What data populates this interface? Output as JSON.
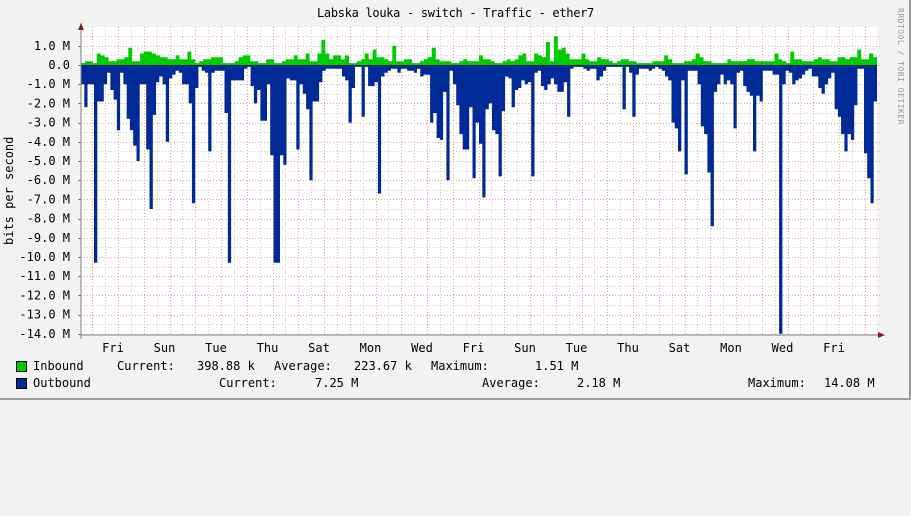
{
  "title": "Labska louka - switch - Traffic - ether7",
  "watermark": "RRDTOOL / TOBI OETIKER",
  "chart_data": {
    "type": "area",
    "title": "Labska louka - switch - Traffic - ether7",
    "xlabel": "",
    "ylabel": "bits per second",
    "ylim": [
      -14000000,
      1500000
    ],
    "grid": true,
    "legend_position": "bottom",
    "y_ticks": [
      "1.0 M",
      "0.0",
      "-1.0 M",
      "-2.0 M",
      "-3.0 M",
      "-4.0 M",
      "-5.0 M",
      "-6.0 M",
      "-7.0 M",
      "-8.0 M",
      "-9.0 M",
      "-10.0 M",
      "-11.0 M",
      "-12.0 M",
      "-13.0 M",
      "-14.0 M"
    ],
    "x_ticks": [
      "Fri",
      "Sun",
      "Tue",
      "Thu",
      "Sat",
      "Mon",
      "Wed",
      "Fri",
      "Sun",
      "Tue",
      "Thu",
      "Sat",
      "Mon",
      "Wed",
      "Fri"
    ],
    "series": [
      {
        "name": "Inbound",
        "color": "#00cc00",
        "current": "398.88 k",
        "average": "223.67 k",
        "maximum": "1.51 M",
        "values_mbps": [
          0.1,
          0.2,
          0.2,
          0.1,
          0.6,
          0.5,
          0.4,
          0.2,
          0.2,
          0.3,
          0.3,
          0.4,
          0.9,
          0.2,
          0.2,
          0.6,
          0.7,
          0.7,
          0.6,
          0.5,
          0.4,
          0.4,
          0.3,
          0.3,
          0.5,
          0.3,
          0.3,
          0.7,
          0.3,
          0.1,
          0.2,
          0.3,
          0.3,
          0.4,
          0.4,
          0.4,
          0.1,
          0.1,
          0.1,
          0.2,
          0.4,
          0.5,
          0.5,
          0.2,
          0.2,
          0.1,
          0.1,
          0.3,
          0.3,
          0.1,
          0.1,
          0.2,
          0.3,
          0.3,
          0.5,
          0.3,
          0.3,
          0.6,
          0.2,
          0.2,
          0.6,
          1.3,
          0.6,
          0.3,
          0.5,
          0.5,
          0.3,
          0.5,
          0.1,
          0.1,
          0.2,
          0.3,
          0.6,
          0.3,
          0.8,
          0.4,
          0.4,
          0.3,
          0.2,
          1.0,
          0.2,
          0.2,
          0.3,
          0.3,
          0.1,
          0.1,
          0.2,
          0.3,
          0.4,
          0.9,
          0.3,
          0.2,
          0.2,
          0.2,
          0.1,
          0.1,
          0.2,
          0.3,
          0.2,
          0.2,
          0.2,
          0.5,
          0.3,
          0.3,
          0.2,
          0.1,
          0.1,
          0.2,
          0.3,
          0.2,
          0.3,
          0.5,
          0.6,
          0.2,
          0.2,
          0.6,
          0.5,
          0.4,
          1.2,
          0.2,
          1.5,
          0.8,
          0.9,
          0.6,
          0.3,
          0.3,
          0.3,
          0.6,
          0.3,
          0.2,
          0.2,
          0.4,
          0.3,
          0.3,
          0.2,
          0.1,
          0.2,
          0.3,
          0.3,
          0.2,
          0.2,
          0.1,
          0.1,
          0.1,
          0.1,
          0.2,
          0.2,
          0.2,
          0.5,
          0.3,
          0.1,
          0.1,
          0.1,
          0.2,
          0.2,
          0.3,
          0.6,
          0.4,
          0.2,
          0.2,
          0.1,
          0.1,
          0.1,
          0.1,
          0.3,
          0.2,
          0.2,
          0.2,
          0.2,
          0.3,
          0.3,
          0.2,
          0.2,
          0.2,
          0.2,
          0.2,
          0.6,
          0.3,
          0.2,
          0.1,
          0.7,
          0.3,
          0.3,
          0.2,
          0.2,
          0.2,
          0.3,
          0.4,
          0.3,
          0.3,
          0.2,
          0.2,
          0.4,
          0.4,
          0.3,
          0.4,
          0.4,
          0.8,
          0.3,
          0.3,
          0.6,
          0.4
        ]
      },
      {
        "name": "Outbound",
        "color": "#002a97",
        "current": "7.25 M",
        "average": "2.18 M",
        "maximum": "14.08 M",
        "values_mbps": [
          -1.0,
          -2.2,
          -1.0,
          -1.0,
          -10.3,
          -1.9,
          -1.9,
          -1.0,
          -0.4,
          -1.3,
          -1.8,
          -3.4,
          -0.4,
          -1.0,
          -2.8,
          -3.4,
          -4.2,
          -5.0,
          -1.0,
          -1.0,
          -4.4,
          -7.5,
          -2.6,
          -0.9,
          -0.6,
          -1.0,
          -4.0,
          -0.7,
          -0.5,
          -0.3,
          -0.4,
          -1.0,
          -1.0,
          -2.0,
          -7.2,
          -1.2,
          -0.1,
          -0.3,
          -0.4,
          -4.5,
          -0.4,
          -0.3,
          -0.3,
          -0.3,
          -2.5,
          -10.3,
          -0.8,
          -0.8,
          -0.8,
          -0.8,
          -0.2,
          -0.1,
          -1.1,
          -2.0,
          -1.3,
          -2.9,
          -2.9,
          -1.0,
          -4.7,
          -10.3,
          -10.3,
          -4.7,
          -5.2,
          -0.7,
          -0.8,
          -0.8,
          -4.4,
          -1.0,
          -1.5,
          -2.3,
          -6.0,
          -1.9,
          -1.9,
          -0.9,
          -0.3,
          -0.2,
          -0.2,
          -0.2,
          -0.2,
          -0.2,
          -0.6,
          -0.8,
          -3.0,
          -1.2,
          -0.1,
          -0.1,
          -2.7,
          -0.1,
          -1.1,
          -1.1,
          -0.9,
          -6.7,
          -0.6,
          -0.4,
          -0.3,
          -0.2,
          -0.2,
          -0.4,
          -0.2,
          -0.2,
          -0.3,
          -0.3,
          -0.4,
          -0.2,
          -0.6,
          -0.5,
          -0.5,
          -3.0,
          -2.5,
          -3.8,
          -3.9,
          -1.4,
          -6.0,
          -0.3,
          -1.0,
          -2.1,
          -3.6,
          -4.4,
          -4.4,
          -2.2,
          -5.9,
          -3.0,
          -4.1,
          -6.9,
          -2.3,
          -2.0,
          -3.4,
          -3.6,
          -5.8,
          -2.4,
          -0.6,
          -0.7,
          -2.2,
          -1.3,
          -1.2,
          -0.8,
          -1.0,
          -0.9,
          -5.8,
          -0.4,
          -0.3,
          -1.1,
          -1.3,
          -1.0,
          -0.7,
          -1.0,
          -1.4,
          -1.4,
          -0.9,
          -2.7,
          -0.2,
          -0.1,
          -0.1,
          -0.1,
          -0.2,
          -0.3,
          -0.2,
          -0.2,
          -0.8,
          -0.6,
          -0.3,
          -0.1,
          -0.1,
          -0.1,
          -0.1,
          -0.1,
          -2.3,
          -0.1,
          -0.4,
          -2.7,
          -0.5,
          -0.2,
          -0.2,
          -0.2,
          -0.3,
          -0.2,
          -0.1,
          -0.2,
          -0.3,
          -0.6,
          -0.8,
          -3.0,
          -3.3,
          -4.5,
          -0.8,
          -5.7,
          -0.3,
          -0.3,
          -0.3,
          -1.0,
          -3.2,
          -3.6,
          -5.6,
          -8.4,
          -1.4,
          -1.0,
          -0.5,
          -1.0,
          -0.8,
          -1.0,
          -3.3,
          -0.4,
          -0.3,
          -1.1,
          -1.4,
          -1.6,
          -4.5,
          -1.6,
          -1.9,
          -0.3,
          -0.3,
          -0.3,
          -0.5,
          -0.5,
          -14.0,
          -1.0,
          -0.3,
          -0.4,
          -1.0,
          -0.8,
          -0.7,
          -0.5,
          -0.3,
          -0.2,
          -0.6,
          -0.6,
          -1.2,
          -1.5,
          -1.0,
          -0.7,
          -0.4,
          -2.3,
          -2.7,
          -3.6,
          -4.5,
          -3.6,
          -3.9,
          -2.1,
          -0.2,
          -0.2,
          -4.6,
          -5.9,
          -7.2,
          -1.9
        ]
      }
    ]
  },
  "legend": {
    "inbound": {
      "label": "Inbound",
      "current_label": "Current:",
      "current": "398.88 k",
      "average_label": "Average:",
      "average": "223.67 k",
      "maximum_label": "Maximum:",
      "maximum": "1.51 M"
    },
    "outbound": {
      "label": "Outbound",
      "current_label": "Current:",
      "current": "7.25 M",
      "average_label": "Average:",
      "average": "2.18 M",
      "maximum_label": "Maximum:",
      "maximum": "14.08 M"
    }
  },
  "colors": {
    "inbound": "#00cc00",
    "outbound": "#002a97",
    "background": "#f3f3f3",
    "canvas": "#ffffff",
    "major_grid": "#e8a0a0",
    "minor_grid": "#cccccc",
    "axis": "#808080",
    "arrow": "#8b1a1a"
  }
}
